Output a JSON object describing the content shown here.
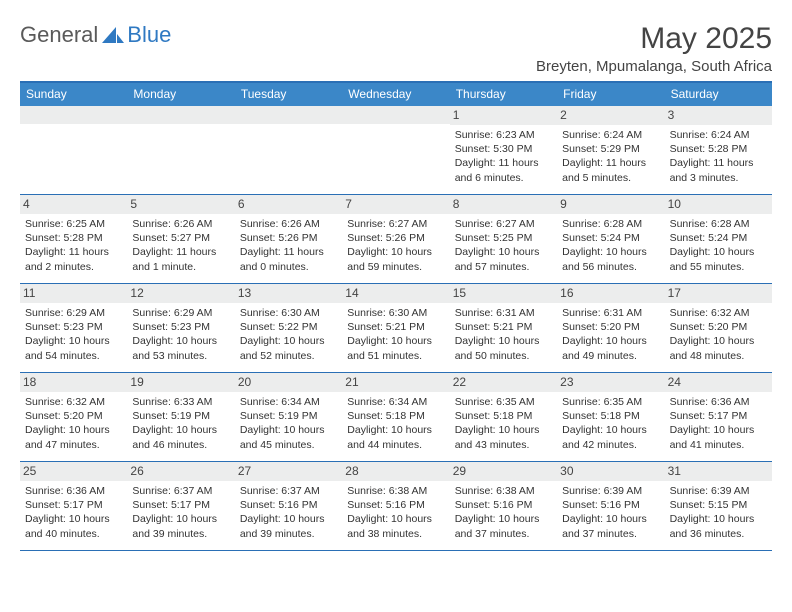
{
  "brand": {
    "part1": "General",
    "part2": "Blue"
  },
  "title": "May 2025",
  "location": "Breyten, Mpumalanga, South Africa",
  "colors": {
    "header_bar": "#3b87c8",
    "rule": "#2a6fb5",
    "daynum_bg": "#eceded",
    "text": "#333333",
    "logo_gray": "#5a5a5a",
    "logo_blue": "#2f79c2"
  },
  "days_of_week": [
    "Sunday",
    "Monday",
    "Tuesday",
    "Wednesday",
    "Thursday",
    "Friday",
    "Saturday"
  ],
  "weeks": [
    [
      null,
      null,
      null,
      null,
      {
        "n": "1",
        "sr": "Sunrise: 6:23 AM",
        "ss": "Sunset: 5:30 PM",
        "dl": "Daylight: 11 hours and 6 minutes."
      },
      {
        "n": "2",
        "sr": "Sunrise: 6:24 AM",
        "ss": "Sunset: 5:29 PM",
        "dl": "Daylight: 11 hours and 5 minutes."
      },
      {
        "n": "3",
        "sr": "Sunrise: 6:24 AM",
        "ss": "Sunset: 5:28 PM",
        "dl": "Daylight: 11 hours and 3 minutes."
      }
    ],
    [
      {
        "n": "4",
        "sr": "Sunrise: 6:25 AM",
        "ss": "Sunset: 5:28 PM",
        "dl": "Daylight: 11 hours and 2 minutes."
      },
      {
        "n": "5",
        "sr": "Sunrise: 6:26 AM",
        "ss": "Sunset: 5:27 PM",
        "dl": "Daylight: 11 hours and 1 minute."
      },
      {
        "n": "6",
        "sr": "Sunrise: 6:26 AM",
        "ss": "Sunset: 5:26 PM",
        "dl": "Daylight: 11 hours and 0 minutes."
      },
      {
        "n": "7",
        "sr": "Sunrise: 6:27 AM",
        "ss": "Sunset: 5:26 PM",
        "dl": "Daylight: 10 hours and 59 minutes."
      },
      {
        "n": "8",
        "sr": "Sunrise: 6:27 AM",
        "ss": "Sunset: 5:25 PM",
        "dl": "Daylight: 10 hours and 57 minutes."
      },
      {
        "n": "9",
        "sr": "Sunrise: 6:28 AM",
        "ss": "Sunset: 5:24 PM",
        "dl": "Daylight: 10 hours and 56 minutes."
      },
      {
        "n": "10",
        "sr": "Sunrise: 6:28 AM",
        "ss": "Sunset: 5:24 PM",
        "dl": "Daylight: 10 hours and 55 minutes."
      }
    ],
    [
      {
        "n": "11",
        "sr": "Sunrise: 6:29 AM",
        "ss": "Sunset: 5:23 PM",
        "dl": "Daylight: 10 hours and 54 minutes."
      },
      {
        "n": "12",
        "sr": "Sunrise: 6:29 AM",
        "ss": "Sunset: 5:23 PM",
        "dl": "Daylight: 10 hours and 53 minutes."
      },
      {
        "n": "13",
        "sr": "Sunrise: 6:30 AM",
        "ss": "Sunset: 5:22 PM",
        "dl": "Daylight: 10 hours and 52 minutes."
      },
      {
        "n": "14",
        "sr": "Sunrise: 6:30 AM",
        "ss": "Sunset: 5:21 PM",
        "dl": "Daylight: 10 hours and 51 minutes."
      },
      {
        "n": "15",
        "sr": "Sunrise: 6:31 AM",
        "ss": "Sunset: 5:21 PM",
        "dl": "Daylight: 10 hours and 50 minutes."
      },
      {
        "n": "16",
        "sr": "Sunrise: 6:31 AM",
        "ss": "Sunset: 5:20 PM",
        "dl": "Daylight: 10 hours and 49 minutes."
      },
      {
        "n": "17",
        "sr": "Sunrise: 6:32 AM",
        "ss": "Sunset: 5:20 PM",
        "dl": "Daylight: 10 hours and 48 minutes."
      }
    ],
    [
      {
        "n": "18",
        "sr": "Sunrise: 6:32 AM",
        "ss": "Sunset: 5:20 PM",
        "dl": "Daylight: 10 hours and 47 minutes."
      },
      {
        "n": "19",
        "sr": "Sunrise: 6:33 AM",
        "ss": "Sunset: 5:19 PM",
        "dl": "Daylight: 10 hours and 46 minutes."
      },
      {
        "n": "20",
        "sr": "Sunrise: 6:34 AM",
        "ss": "Sunset: 5:19 PM",
        "dl": "Daylight: 10 hours and 45 minutes."
      },
      {
        "n": "21",
        "sr": "Sunrise: 6:34 AM",
        "ss": "Sunset: 5:18 PM",
        "dl": "Daylight: 10 hours and 44 minutes."
      },
      {
        "n": "22",
        "sr": "Sunrise: 6:35 AM",
        "ss": "Sunset: 5:18 PM",
        "dl": "Daylight: 10 hours and 43 minutes."
      },
      {
        "n": "23",
        "sr": "Sunrise: 6:35 AM",
        "ss": "Sunset: 5:18 PM",
        "dl": "Daylight: 10 hours and 42 minutes."
      },
      {
        "n": "24",
        "sr": "Sunrise: 6:36 AM",
        "ss": "Sunset: 5:17 PM",
        "dl": "Daylight: 10 hours and 41 minutes."
      }
    ],
    [
      {
        "n": "25",
        "sr": "Sunrise: 6:36 AM",
        "ss": "Sunset: 5:17 PM",
        "dl": "Daylight: 10 hours and 40 minutes."
      },
      {
        "n": "26",
        "sr": "Sunrise: 6:37 AM",
        "ss": "Sunset: 5:17 PM",
        "dl": "Daylight: 10 hours and 39 minutes."
      },
      {
        "n": "27",
        "sr": "Sunrise: 6:37 AM",
        "ss": "Sunset: 5:16 PM",
        "dl": "Daylight: 10 hours and 39 minutes."
      },
      {
        "n": "28",
        "sr": "Sunrise: 6:38 AM",
        "ss": "Sunset: 5:16 PM",
        "dl": "Daylight: 10 hours and 38 minutes."
      },
      {
        "n": "29",
        "sr": "Sunrise: 6:38 AM",
        "ss": "Sunset: 5:16 PM",
        "dl": "Daylight: 10 hours and 37 minutes."
      },
      {
        "n": "30",
        "sr": "Sunrise: 6:39 AM",
        "ss": "Sunset: 5:16 PM",
        "dl": "Daylight: 10 hours and 37 minutes."
      },
      {
        "n": "31",
        "sr": "Sunrise: 6:39 AM",
        "ss": "Sunset: 5:15 PM",
        "dl": "Daylight: 10 hours and 36 minutes."
      }
    ]
  ]
}
